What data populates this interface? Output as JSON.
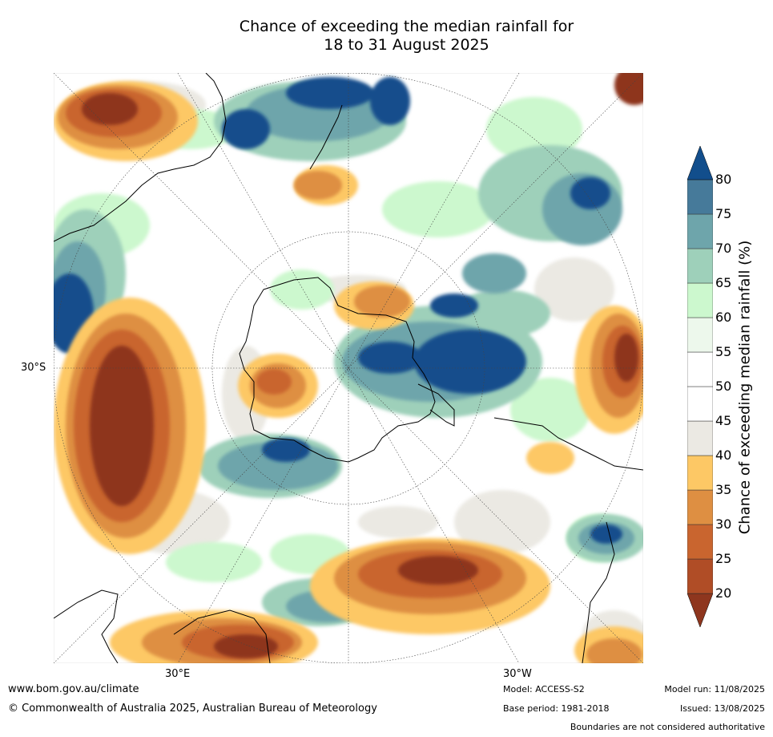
{
  "title": {
    "line1": "Chance of exceeding the median rainfall for",
    "line2": "18 to 31 August 2025"
  },
  "map": {
    "projection": "south polar stereographic",
    "lat_label": "30°S",
    "lon_labels": [
      "30°E",
      "30°W"
    ]
  },
  "colorbar": {
    "label": "Chance of exceeding median rainfall (%)",
    "ticks": [
      "20",
      "25",
      "30",
      "35",
      "40",
      "45",
      "50",
      "55",
      "60",
      "65",
      "70",
      "75",
      "80"
    ],
    "colors": [
      "#8e361e",
      "#b04d26",
      "#c9652f",
      "#de8f42",
      "#fdc865",
      "#ebe9e3",
      "#ffffff",
      "#ffffff",
      "#edf8ec",
      "#ccf8ce",
      "#9ed0ba",
      "#6ea5ab",
      "#467a9a",
      "#124e8c"
    ]
  },
  "footer": {
    "website": "www.bom.gov.au/climate",
    "copyright": "© Commonwealth of Australia 2025, Australian Bureau of Meteorology",
    "model": "Model: ACCESS-S2",
    "base_period": "Base period: 1981-2018",
    "model_run": "Model run: 11/08/2025",
    "issued": "Issued: 13/08/2025",
    "disclaimer": "Boundaries are not considered authoritative"
  }
}
